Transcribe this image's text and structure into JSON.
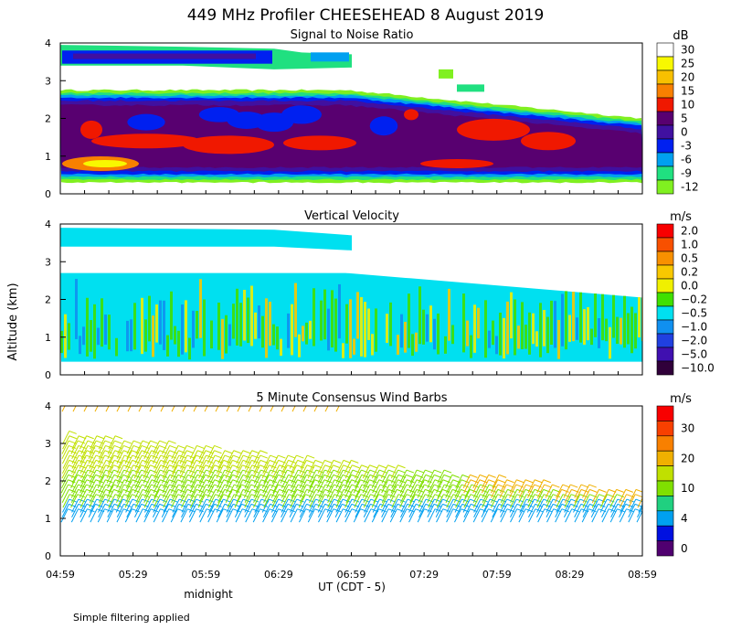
{
  "title": "449 MHz Profiler CHEESEHEAD  8 August 2019",
  "ylabel": "Altitude (km)",
  "xlabel": "UT  (CDT - 5)",
  "midnight_label": "midnight",
  "footnote": "Simple filtering applied",
  "x_ticks": [
    "04:59",
    "05:29",
    "05:59",
    "06:29",
    "06:59",
    "07:29",
    "07:59",
    "08:29",
    "08:59"
  ],
  "colors": {
    "axis": "#000000",
    "background": "#ffffff"
  },
  "chart_data": [
    {
      "type": "heatmap",
      "title": "Signal to Noise Ratio",
      "unit": "dB",
      "ylim": [
        0,
        4
      ],
      "y_ticks": [
        "0",
        "1",
        "2",
        "3",
        "4"
      ],
      "colorbar": [
        {
          "label": "30",
          "color": "#ffffff"
        },
        {
          "label": "25",
          "color": "#f8f800"
        },
        {
          "label": "20",
          "color": "#f8c000"
        },
        {
          "label": "15",
          "color": "#f88000"
        },
        {
          "label": "10",
          "color": "#f01800"
        },
        {
          "label": "5",
          "color": "#580070"
        },
        {
          "label": "0",
          "color": "#4010a0"
        },
        {
          "label": "-3",
          "color": "#0020f0"
        },
        {
          "label": "-6",
          "color": "#00a0f0"
        },
        {
          "label": "-9",
          "color": "#20e080"
        },
        {
          "label": "-12",
          "color": "#80f020"
        }
      ]
    },
    {
      "type": "heatmap",
      "title": "Vertical Velocity",
      "unit": "m/s",
      "ylim": [
        0,
        4
      ],
      "y_ticks": [
        "0",
        "1",
        "2",
        "3",
        "4"
      ],
      "colorbar": [
        {
          "label": "2.0",
          "color": "#f80000"
        },
        {
          "label": "1.0",
          "color": "#f85000"
        },
        {
          "label": "0.5",
          "color": "#f89000"
        },
        {
          "label": "0.2",
          "color": "#f8c800"
        },
        {
          "label": "0.0",
          "color": "#f0f000"
        },
        {
          "label": "−0.2",
          "color": "#40e000"
        },
        {
          "label": "−0.5",
          "color": "#00e0f0"
        },
        {
          "label": "−1.0",
          "color": "#1090f0"
        },
        {
          "label": "−2.0",
          "color": "#2040e0"
        },
        {
          "label": "−5.0",
          "color": "#4010b0"
        },
        {
          "label": "−10.0",
          "color": "#30003a"
        }
      ]
    },
    {
      "type": "wind-barbs",
      "title": "5 Minute Consensus Wind Barbs",
      "unit": "m/s",
      "ylim": [
        0,
        4
      ],
      "y_ticks": [
        "0",
        "1",
        "2",
        "3",
        "4"
      ],
      "colorbar": [
        {
          "label": "",
          "color": "#f80000"
        },
        {
          "label": "30",
          "color": "#f84000"
        },
        {
          "label": "",
          "color": "#f88000"
        },
        {
          "label": "20",
          "color": "#f0b000"
        },
        {
          "label": "",
          "color": "#c0e000"
        },
        {
          "label": "10",
          "color": "#80e000"
        },
        {
          "label": "",
          "color": "#20d080"
        },
        {
          "label": "4",
          "color": "#00a0f0"
        },
        {
          "label": "",
          "color": "#0010e0"
        },
        {
          "label": "0",
          "color": "#500070"
        }
      ]
    }
  ]
}
